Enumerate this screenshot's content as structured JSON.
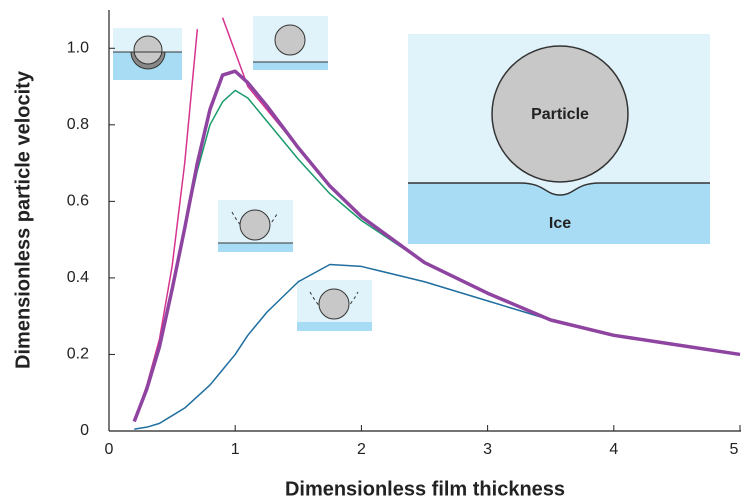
{
  "chart_data": {
    "type": "line",
    "xlabel": "Dimensionless film thickness",
    "ylabel": "Dimensionless particle velocity",
    "annotations": [
      "Particle",
      "Ice"
    ],
    "x": [
      0.2,
      0.3,
      0.4,
      0.5,
      0.6,
      0.7,
      0.8,
      0.9,
      1.0,
      1.1,
      1.25,
      1.5,
      1.75,
      2,
      2.5,
      3,
      3.5,
      4,
      4.5,
      5
    ],
    "series": [
      {
        "color": "#d6338f",
        "width": 1.5,
        "values": [
          0.025,
          0.12,
          0.24,
          0.43,
          0.7,
          1.05,
          null,
          1.08,
          0.99,
          0.9,
          0.84,
          0.74,
          0.64,
          0.56,
          0.44,
          0.36,
          0.29,
          0.25,
          0.225,
          0.2
        ]
      },
      {
        "color": "#1a9a6a",
        "width": 1.5,
        "values": [
          0.025,
          0.11,
          0.22,
          0.37,
          0.53,
          0.68,
          0.8,
          0.86,
          0.89,
          0.87,
          0.81,
          0.71,
          0.62,
          0.55,
          0.44,
          0.36,
          0.29,
          0.25,
          0.225,
          0.2
        ]
      },
      {
        "color": "#1f6ea0",
        "width": 1.5,
        "values": [
          0.005,
          0.01,
          0.02,
          0.04,
          0.06,
          0.09,
          0.12,
          0.16,
          0.2,
          0.25,
          0.31,
          0.39,
          0.435,
          0.43,
          0.39,
          0.34,
          0.29,
          0.25,
          0.225,
          0.2
        ]
      },
      {
        "color": "#8e44a0",
        "width": 3.5,
        "values": [
          0.025,
          0.11,
          0.22,
          0.37,
          0.53,
          0.7,
          0.84,
          0.93,
          0.94,
          0.91,
          0.85,
          0.74,
          0.64,
          0.56,
          0.44,
          0.36,
          0.29,
          0.25,
          0.225,
          0.2
        ]
      }
    ],
    "xlim": [
      0,
      5
    ],
    "ylim": [
      0,
      1.1
    ],
    "xticks": [
      0,
      1,
      2,
      3,
      4,
      5
    ],
    "yticks": [
      0,
      0.2,
      0.4,
      0.6,
      0.8,
      {
        "value": 1,
        "label": "1.0"
      }
    ]
  }
}
